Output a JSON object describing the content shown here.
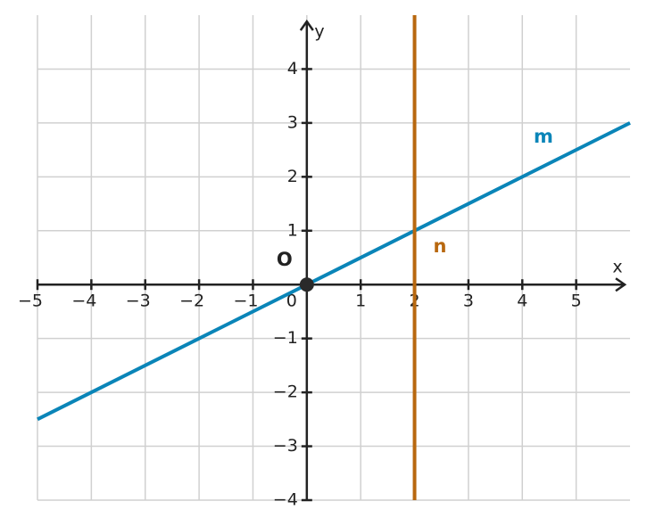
{
  "chart_data": {
    "type": "line",
    "xlabel": "x",
    "ylabel": "y",
    "xlim": [
      -5,
      6
    ],
    "ylim": [
      -4,
      5
    ],
    "xticks": [
      {
        "value": -5,
        "label": "−5"
      },
      {
        "value": -4,
        "label": "−4"
      },
      {
        "value": -3,
        "label": "−3"
      },
      {
        "value": -2,
        "label": "−2"
      },
      {
        "value": -1,
        "label": "−1"
      },
      0,
      1,
      2,
      3,
      4,
      5
    ],
    "yticks": [
      {
        "value": -4,
        "label": "−4"
      },
      {
        "value": -3,
        "label": "−3"
      },
      {
        "value": -2,
        "label": "−2"
      },
      {
        "value": -1,
        "label": "−1"
      },
      1,
      2,
      3,
      4
    ],
    "grid": true,
    "series": [
      {
        "name": "m",
        "color": "#0a85b8",
        "x": [
          -5,
          6
        ],
        "values": [
          -2.5,
          3
        ]
      },
      {
        "name": "n",
        "color": "#b8680f",
        "x": [
          2,
          2
        ],
        "values": [
          -4,
          5
        ]
      }
    ],
    "points": [
      {
        "label": "O",
        "x": 0,
        "y": 0,
        "color": "#2a2a2a"
      }
    ]
  }
}
